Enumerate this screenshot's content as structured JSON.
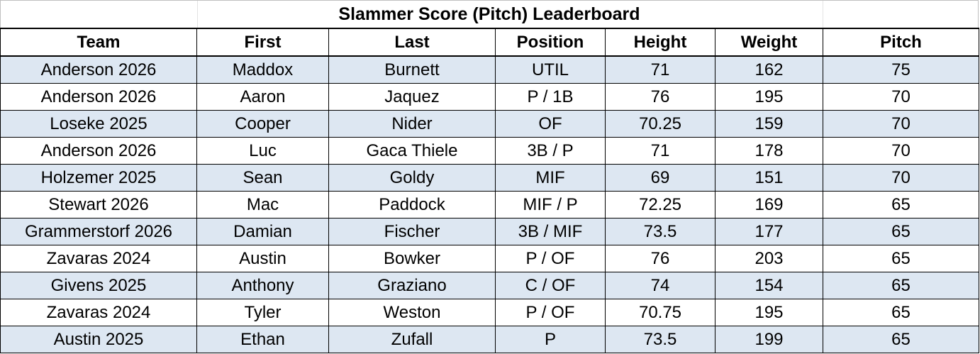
{
  "title": "Slammer Score (Pitch) Leaderboard",
  "columns": [
    "Team",
    "First",
    "Last",
    "Position",
    "Height",
    "Weight",
    "Pitch"
  ],
  "rows": [
    [
      "Anderson 2026",
      "Maddox",
      "Burnett",
      "UTIL",
      "71",
      "162",
      "75"
    ],
    [
      "Anderson 2026",
      "Aaron",
      "Jaquez",
      "P / 1B",
      "76",
      "195",
      "70"
    ],
    [
      "Loseke 2025",
      "Cooper",
      "Nider",
      "OF",
      "70.25",
      "159",
      "70"
    ],
    [
      "Anderson 2026",
      "Luc",
      "Gaca Thiele",
      "3B / P",
      "71",
      "178",
      "70"
    ],
    [
      "Holzemer 2025",
      "Sean",
      "Goldy",
      "MIF",
      "69",
      "151",
      "70"
    ],
    [
      "Stewart 2026",
      "Mac",
      "Paddock",
      "MIF / P",
      "72.25",
      "169",
      "65"
    ],
    [
      "Grammerstorf 2026",
      "Damian",
      "Fischer",
      "3B / MIF",
      "73.5",
      "177",
      "65"
    ],
    [
      "Zavaras 2024",
      "Austin",
      "Bowker",
      "P / OF",
      "76",
      "203",
      "65"
    ],
    [
      "Givens 2025",
      "Anthony",
      "Graziano",
      "C / OF",
      "74",
      "154",
      "65"
    ],
    [
      "Zavaras 2024",
      "Tyler",
      "Weston",
      "P / OF",
      "70.75",
      "195",
      "65"
    ],
    [
      "Austin 2025",
      "Ethan",
      "Zufall",
      "P",
      "73.5",
      "199",
      "65"
    ]
  ],
  "colors": {
    "band_fill": "#dde7f2",
    "white_fill": "#ffffff",
    "border": "#000000"
  }
}
